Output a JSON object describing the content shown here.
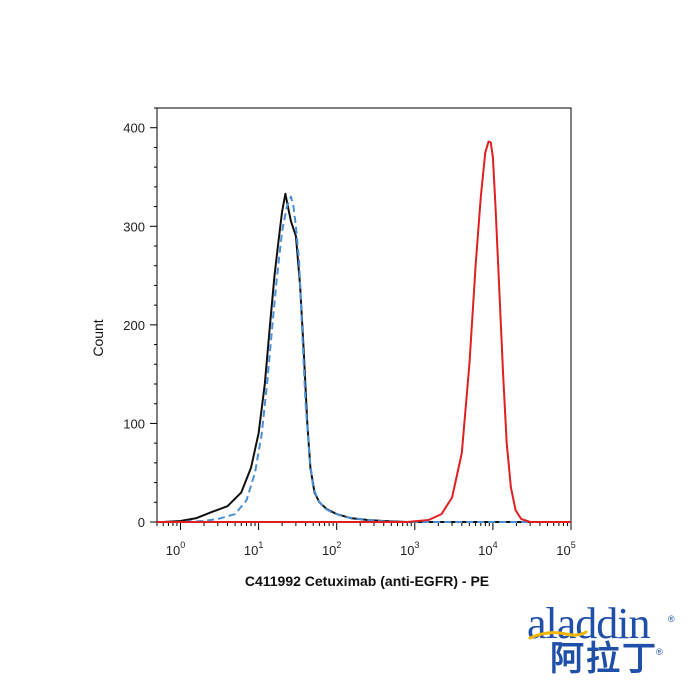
{
  "chart_data": {
    "type": "line",
    "xlabel": "C411992 Cetuximab (anti-EGFR) - PE",
    "ylabel": "Count",
    "xscale": "log",
    "xlim": [
      0.5,
      100000
    ],
    "ylim": [
      0,
      420
    ],
    "y_ticks": [
      0,
      100,
      200,
      300,
      400
    ],
    "x_ticks": [
      {
        "value": 1,
        "base": "10",
        "exp": "0"
      },
      {
        "value": 10,
        "base": "10",
        "exp": "1"
      },
      {
        "value": 100,
        "base": "10",
        "exp": "2"
      },
      {
        "value": 1000,
        "base": "10",
        "exp": "3"
      },
      {
        "value": 10000,
        "base": "10",
        "exp": "4"
      },
      {
        "value": 100000,
        "base": "10",
        "exp": "5"
      }
    ],
    "legend": "none",
    "grid": false,
    "series": [
      {
        "color": "#111111",
        "style": "solid",
        "x": [
          0.6,
          1,
          1.6,
          2.5,
          4,
          6,
          8,
          10,
          12,
          14,
          16,
          18,
          20,
          22,
          24,
          26,
          30,
          34,
          38,
          42,
          46,
          52,
          60,
          75,
          100,
          150,
          250,
          400,
          800,
          2000,
          100000
        ],
        "y": [
          0,
          1,
          4,
          10,
          16,
          30,
          55,
          90,
          140,
          200,
          250,
          285,
          315,
          333,
          318,
          305,
          290,
          240,
          170,
          100,
          55,
          30,
          20,
          13,
          8,
          4,
          2,
          1,
          0,
          0,
          0
        ]
      },
      {
        "color": "#4a90d9",
        "style": "dashed",
        "x": [
          0.6,
          1,
          2,
          3,
          5,
          7,
          9,
          11,
          13,
          15,
          17,
          20,
          23,
          26,
          28,
          30,
          33,
          36,
          40,
          45,
          50,
          58,
          70,
          90,
          130,
          200,
          350,
          600,
          1000,
          2000,
          100000
        ],
        "y": [
          0,
          0,
          1,
          3,
          8,
          22,
          50,
          90,
          145,
          200,
          245,
          295,
          320,
          330,
          320,
          300,
          265,
          195,
          120,
          65,
          35,
          22,
          14,
          9,
          5,
          3,
          1,
          0,
          0,
          0,
          0
        ]
      },
      {
        "color": "#e02020",
        "style": "solid",
        "x": [
          0.5,
          800,
          1500,
          2200,
          3000,
          4000,
          5000,
          6000,
          7000,
          8000,
          8800,
          9400,
          10000,
          10800,
          12000,
          13500,
          15000,
          17000,
          19500,
          23000,
          30000,
          50000,
          100000
        ],
        "y": [
          0,
          0,
          2,
          8,
          25,
          70,
          160,
          260,
          330,
          375,
          386,
          385,
          370,
          320,
          240,
          150,
          80,
          35,
          12,
          3,
          0,
          0,
          0
        ]
      }
    ]
  },
  "logo": {
    "latin": "aladdin",
    "chinese": "阿拉丁",
    "registered": "®"
  }
}
